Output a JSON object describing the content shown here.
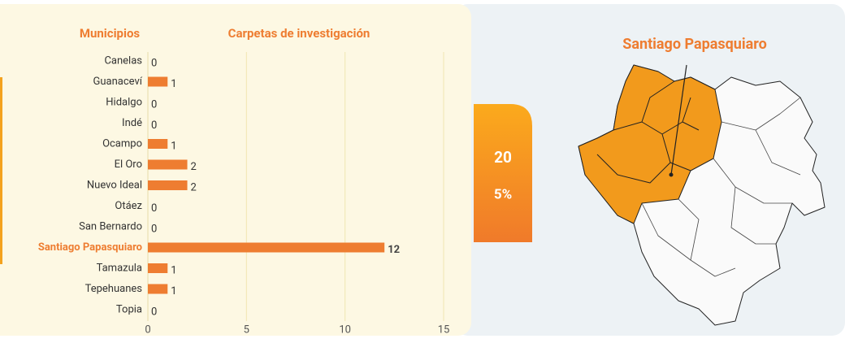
{
  "chart_data": {
    "type": "hbar",
    "headers": [
      "Municipios",
      "Carpetas de investigación"
    ],
    "categories": [
      "Canelas",
      "Guanaceví",
      "Hidalgo",
      "Indé",
      "Ocampo",
      "El Oro",
      "Nuevo Ideal",
      "Otáez",
      "San Bernardo",
      "Santiago Papasquiaro",
      "Tamazula",
      "Tepehuanes",
      "Topia"
    ],
    "values": [
      0,
      1,
      0,
      0,
      1,
      2,
      2,
      0,
      0,
      12,
      1,
      1,
      0
    ],
    "color": "#ee7d31",
    "highlight": "Santiago Papasquiaro",
    "highlight_color": "#ee7d31",
    "xlim": [
      0,
      15
    ],
    "xticks": [
      0,
      5,
      10,
      15
    ],
    "grid": true
  },
  "summary": {
    "count": "20",
    "percent": "5%"
  },
  "map": {
    "title": "Santiago Papasquiaro"
  }
}
